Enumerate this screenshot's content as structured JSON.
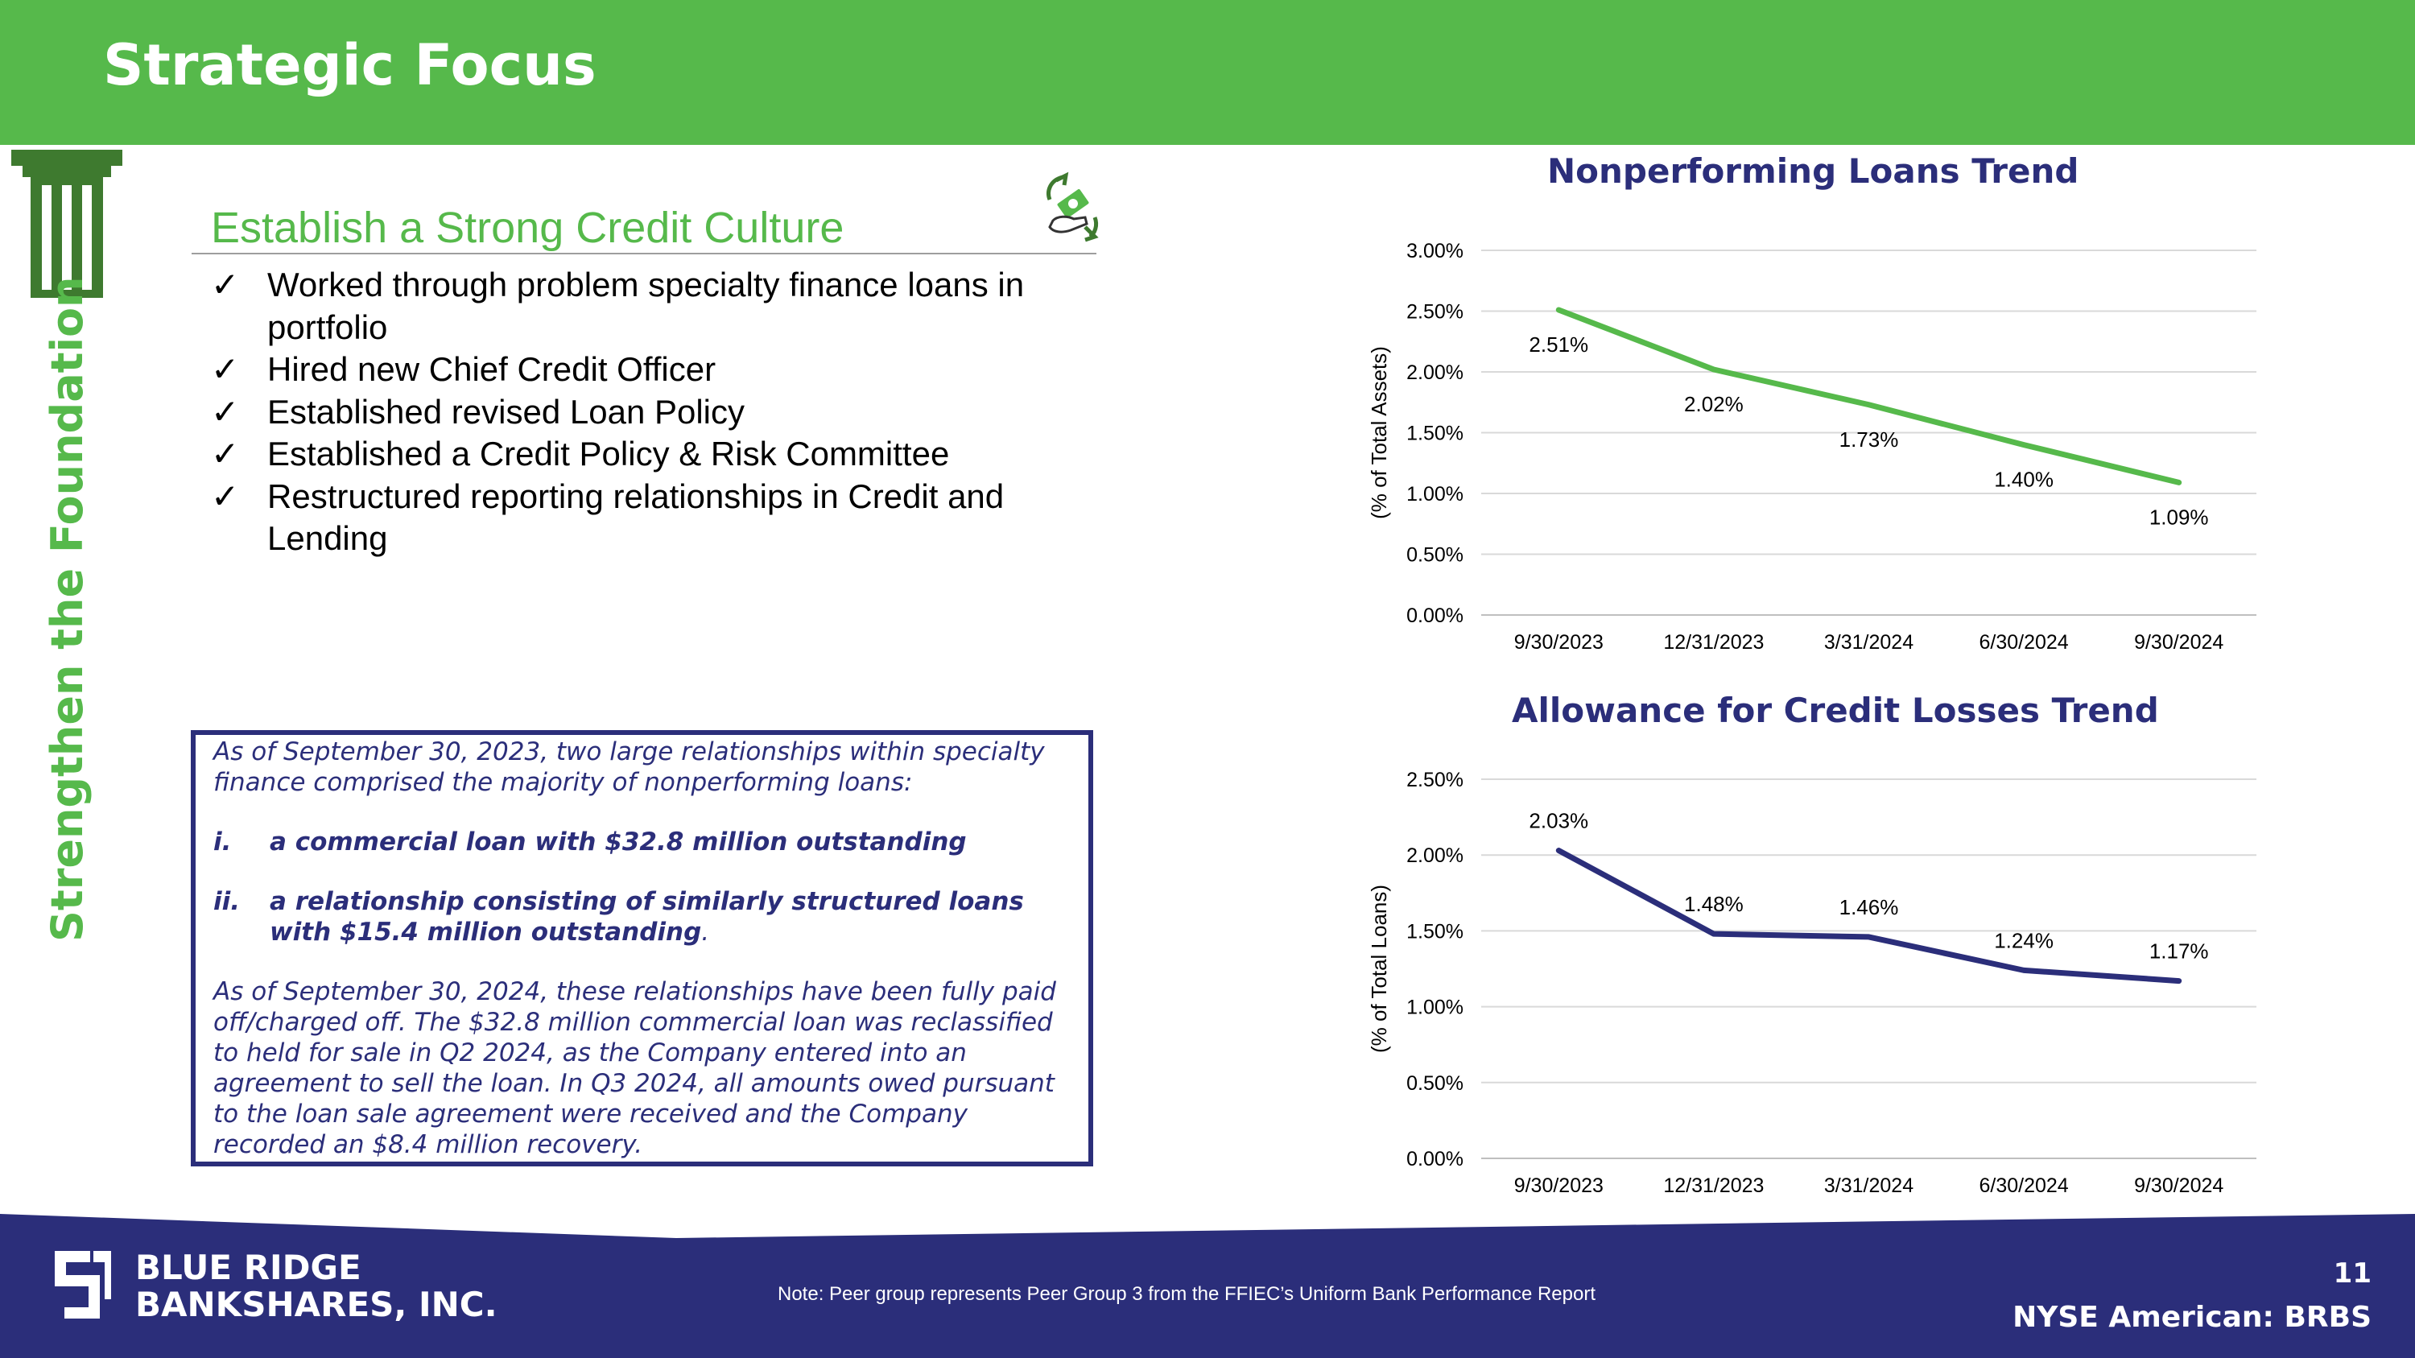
{
  "header": {
    "title": "Strategic Focus"
  },
  "sidebar": {
    "vertical_label": "Strengthen the Foundation",
    "icon": "pillar-icon"
  },
  "section": {
    "heading": "Establish a Strong Credit Culture",
    "heading_icon": "money-refresh-icon",
    "check_mark": "✓",
    "bullets": [
      "Worked through problem specialty finance loans in portfolio",
      "Hired new Chief Credit Officer",
      "Established revised Loan Policy",
      "Established a Credit Policy & Risk Committee",
      "Restructured reporting relationships in Credit and Lending"
    ]
  },
  "note_box": {
    "intro": "As of September 30, 2023, two large relationships within specialty finance comprised the majority of nonperforming loans:",
    "items": [
      {
        "num": "i.",
        "text": "a commercial loan with $32.8 million outstanding"
      },
      {
        "num": "ii.",
        "text": "a relationship consisting of similarly structured loans with $15.4 million outstanding",
        "suffix": "."
      }
    ],
    "closing": "As of September 30, 2024, these relationships have been fully paid off/charged off.  The $32.8 million commercial loan was reclassified to held for sale in Q2 2024, as the Company entered into an agreement to sell the loan.  In Q3 2024, all amounts owed pursuant to the loan sale agreement were received and the Company recorded an $8.4 million recovery."
  },
  "chart_data": [
    {
      "type": "line",
      "title": "Nonperforming Loans Trend",
      "xlabel": "",
      "ylabel": "(% of Total Assets)",
      "categories": [
        "9/30/2023",
        "12/31/2023",
        "3/31/2024",
        "6/30/2024",
        "9/30/2024"
      ],
      "series": [
        {
          "values": [
            2.51,
            2.02,
            1.73,
            1.4,
            1.09
          ],
          "data_labels": [
            "2.51%",
            "2.02%",
            "1.73%",
            "1.40%",
            "1.09%"
          ]
        }
      ],
      "ylim": [
        0,
        3
      ],
      "yticks": [
        "0.00%",
        "0.50%",
        "1.00%",
        "1.50%",
        "2.00%",
        "2.50%",
        "3.00%"
      ],
      "grid": true,
      "color": "#56b94b"
    },
    {
      "type": "line",
      "title": "Allowance for Credit Losses Trend",
      "xlabel": "",
      "ylabel": "(% of Total Loans)",
      "categories": [
        "9/30/2023",
        "12/31/2023",
        "3/31/2024",
        "6/30/2024",
        "9/30/2024"
      ],
      "series": [
        {
          "values": [
            2.03,
            1.48,
            1.46,
            1.24,
            1.17
          ],
          "data_labels": [
            "2.03%",
            "1.48%",
            "1.46%",
            "1.24%",
            "1.17%"
          ]
        }
      ],
      "ylim": [
        0,
        2.5
      ],
      "yticks": [
        "0.00%",
        "0.50%",
        "1.00%",
        "1.50%",
        "2.00%",
        "2.50%"
      ],
      "grid": true,
      "color": "#2b2e7a"
    }
  ],
  "footer": {
    "company_line1": "BLUE RIDGE",
    "company_line2": "BANKSHARES, INC.",
    "logo": "blue-ridge-logo-icon",
    "note": "Note: Peer group represents Peer Group 3 from the FFIEC’s Uniform Bank Performance Report",
    "page_number": "11",
    "ticker": "NYSE American: BRBS"
  },
  "colors": {
    "green": "#56b94b",
    "navy": "#2b2e7a",
    "dark_green": "#3e7a2f"
  }
}
